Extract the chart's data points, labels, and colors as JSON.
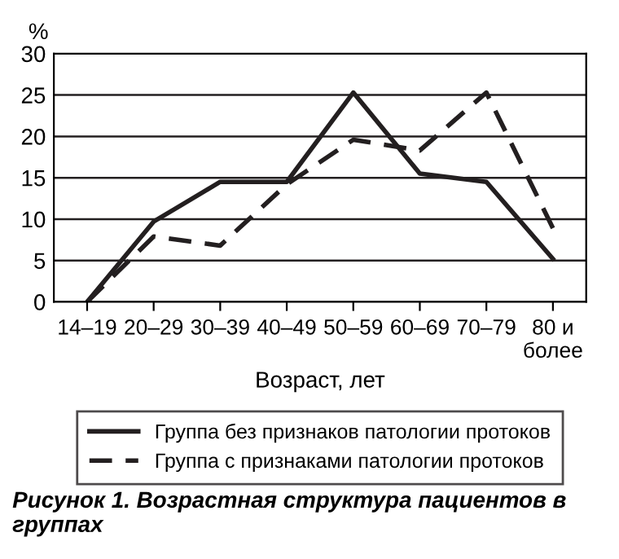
{
  "chart_data": {
    "type": "line",
    "ylabel": "%",
    "xlabel": "Возраст, лет",
    "categories": [
      "14–19",
      "20–29",
      "30–39",
      "40–49",
      "50–59",
      "60–69",
      "70–79",
      "80 и\nболее"
    ],
    "series": [
      {
        "name": "Группа без признаков патологии протоков",
        "color": "#231f20",
        "line_style": "solid",
        "values": [
          0,
          9.7,
          14.5,
          14.5,
          25.3,
          15.5,
          14.5,
          5.2
        ]
      },
      {
        "name": "Группа с признаками патологии протоков",
        "color": "#231f20",
        "line_style": "dashed",
        "values": [
          0,
          7.9,
          6.8,
          14.2,
          19.6,
          18.3,
          25.3,
          8.9
        ]
      }
    ],
    "ylim": [
      0,
      30
    ],
    "yticks": [
      0,
      5,
      10,
      15,
      20,
      25,
      30
    ],
    "grid": "y",
    "legend": "bottom",
    "marker": "none",
    "annotations": [
      "Рисунок 1. Возрастная структура пациентов в группах"
    ]
  }
}
